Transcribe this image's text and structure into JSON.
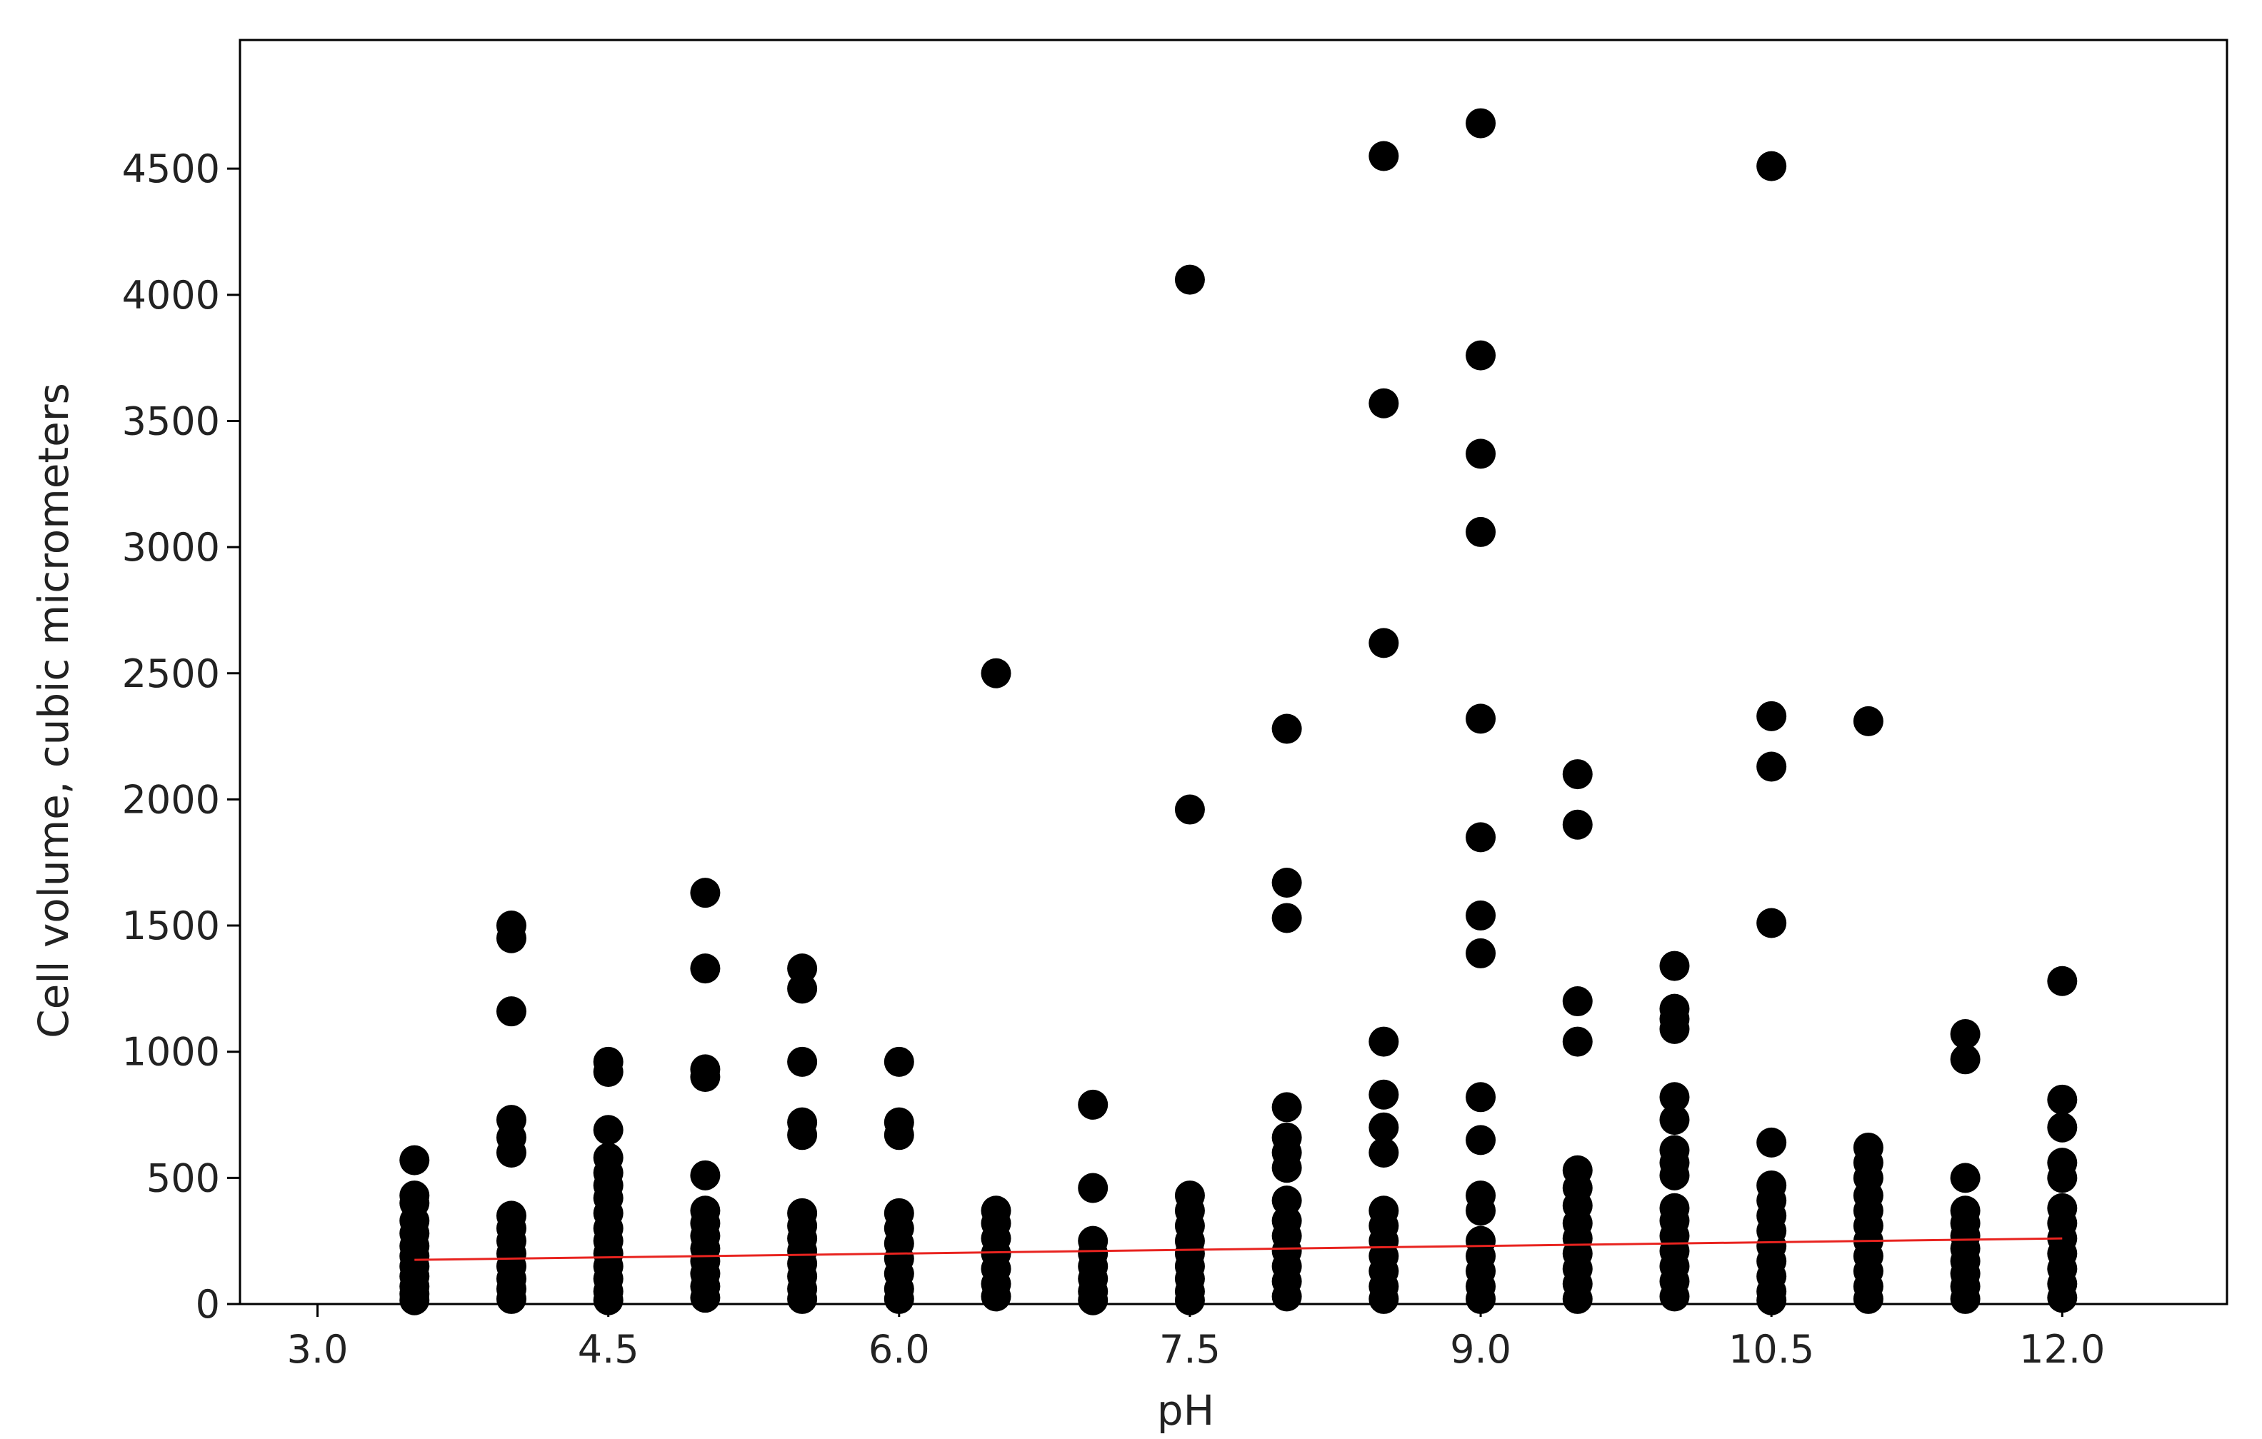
{
  "chart_data": {
    "type": "scatter",
    "title": "",
    "xlabel": "pH",
    "ylabel": "Cell volume, cubic micrometers",
    "xlim": [
      2.6,
      12.85
    ],
    "ylim": [
      0,
      5010
    ],
    "x_ticks": [
      3.0,
      4.5,
      6.0,
      7.5,
      9.0,
      10.5,
      12.0
    ],
    "x_tick_labels": [
      "3.0",
      "4.5",
      "6.0",
      "7.5",
      "9.0",
      "10.5",
      "12.0"
    ],
    "y_ticks": [
      0,
      500,
      1000,
      1500,
      2000,
      2500,
      3000,
      3500,
      4000,
      4500
    ],
    "y_tick_labels": [
      "0",
      "500",
      "1000",
      "1500",
      "2000",
      "2500",
      "3000",
      "3500",
      "4000",
      "4500"
    ],
    "grid": false,
    "legend": "none",
    "colors": {
      "points": "#000000",
      "trend_line": "#e8231f",
      "frame": "#000000"
    },
    "series": [
      {
        "values": [
          [
            3.5,
            570
          ],
          [
            3.5,
            430
          ],
          [
            3.5,
            400
          ],
          [
            3.5,
            330
          ],
          [
            3.5,
            280
          ],
          [
            3.5,
            230
          ],
          [
            3.5,
            190
          ],
          [
            3.5,
            150
          ],
          [
            3.5,
            110
          ],
          [
            3.5,
            70
          ],
          [
            3.5,
            40
          ],
          [
            3.5,
            15
          ],
          [
            4.0,
            1500
          ],
          [
            4.0,
            1450
          ],
          [
            4.0,
            1160
          ],
          [
            4.0,
            730
          ],
          [
            4.0,
            660
          ],
          [
            4.0,
            600
          ],
          [
            4.0,
            350
          ],
          [
            4.0,
            300
          ],
          [
            4.0,
            250
          ],
          [
            4.0,
            200
          ],
          [
            4.0,
            150
          ],
          [
            4.0,
            100
          ],
          [
            4.0,
            60
          ],
          [
            4.0,
            20
          ],
          [
            4.5,
            960
          ],
          [
            4.5,
            920
          ],
          [
            4.5,
            690
          ],
          [
            4.5,
            580
          ],
          [
            4.5,
            520
          ],
          [
            4.5,
            470
          ],
          [
            4.5,
            420
          ],
          [
            4.5,
            360
          ],
          [
            4.5,
            300
          ],
          [
            4.5,
            250
          ],
          [
            4.5,
            200
          ],
          [
            4.5,
            150
          ],
          [
            4.5,
            100
          ],
          [
            4.5,
            50
          ],
          [
            4.5,
            15
          ],
          [
            5.0,
            1630
          ],
          [
            5.0,
            1330
          ],
          [
            5.0,
            930
          ],
          [
            5.0,
            900
          ],
          [
            5.0,
            510
          ],
          [
            5.0,
            370
          ],
          [
            5.0,
            320
          ],
          [
            5.0,
            270
          ],
          [
            5.0,
            220
          ],
          [
            5.0,
            170
          ],
          [
            5.0,
            120
          ],
          [
            5.0,
            70
          ],
          [
            5.0,
            25
          ],
          [
            5.5,
            1330
          ],
          [
            5.5,
            1250
          ],
          [
            5.5,
            960
          ],
          [
            5.5,
            720
          ],
          [
            5.5,
            670
          ],
          [
            5.5,
            360
          ],
          [
            5.5,
            310
          ],
          [
            5.5,
            260
          ],
          [
            5.5,
            210
          ],
          [
            5.5,
            160
          ],
          [
            5.5,
            110
          ],
          [
            5.5,
            60
          ],
          [
            5.5,
            20
          ],
          [
            6.0,
            960
          ],
          [
            6.0,
            720
          ],
          [
            6.0,
            670
          ],
          [
            6.0,
            360
          ],
          [
            6.0,
            300
          ],
          [
            6.0,
            240
          ],
          [
            6.0,
            180
          ],
          [
            6.0,
            120
          ],
          [
            6.0,
            60
          ],
          [
            6.0,
            20
          ],
          [
            6.5,
            2500
          ],
          [
            6.5,
            370
          ],
          [
            6.5,
            320
          ],
          [
            6.5,
            260
          ],
          [
            6.5,
            200
          ],
          [
            6.5,
            140
          ],
          [
            6.5,
            80
          ],
          [
            6.5,
            30
          ],
          [
            7.0,
            790
          ],
          [
            7.0,
            460
          ],
          [
            7.0,
            250
          ],
          [
            7.0,
            200
          ],
          [
            7.0,
            150
          ],
          [
            7.0,
            100
          ],
          [
            7.0,
            50
          ],
          [
            7.0,
            15
          ],
          [
            7.5,
            4060
          ],
          [
            7.5,
            1960
          ],
          [
            7.5,
            430
          ],
          [
            7.5,
            370
          ],
          [
            7.5,
            310
          ],
          [
            7.5,
            250
          ],
          [
            7.5,
            200
          ],
          [
            7.5,
            150
          ],
          [
            7.5,
            100
          ],
          [
            7.5,
            50
          ],
          [
            7.5,
            15
          ],
          [
            8.0,
            2280
          ],
          [
            8.0,
            1670
          ],
          [
            8.0,
            1530
          ],
          [
            8.0,
            780
          ],
          [
            8.0,
            660
          ],
          [
            8.0,
            600
          ],
          [
            8.0,
            540
          ],
          [
            8.0,
            410
          ],
          [
            8.0,
            330
          ],
          [
            8.0,
            270
          ],
          [
            8.0,
            210
          ],
          [
            8.0,
            150
          ],
          [
            8.0,
            90
          ],
          [
            8.0,
            30
          ],
          [
            8.5,
            4550
          ],
          [
            8.5,
            3570
          ],
          [
            8.5,
            2620
          ],
          [
            8.5,
            1040
          ],
          [
            8.5,
            830
          ],
          [
            8.5,
            700
          ],
          [
            8.5,
            600
          ],
          [
            8.5,
            370
          ],
          [
            8.5,
            310
          ],
          [
            8.5,
            250
          ],
          [
            8.5,
            190
          ],
          [
            8.5,
            130
          ],
          [
            8.5,
            70
          ],
          [
            8.5,
            20
          ],
          [
            9.0,
            4680
          ],
          [
            9.0,
            3760
          ],
          [
            9.0,
            3370
          ],
          [
            9.0,
            3060
          ],
          [
            9.0,
            2320
          ],
          [
            9.0,
            1850
          ],
          [
            9.0,
            1540
          ],
          [
            9.0,
            1390
          ],
          [
            9.0,
            820
          ],
          [
            9.0,
            650
          ],
          [
            9.0,
            430
          ],
          [
            9.0,
            370
          ],
          [
            9.0,
            250
          ],
          [
            9.0,
            190
          ],
          [
            9.0,
            130
          ],
          [
            9.0,
            70
          ],
          [
            9.0,
            20
          ],
          [
            9.5,
            2100
          ],
          [
            9.5,
            1900
          ],
          [
            9.5,
            1200
          ],
          [
            9.5,
            1040
          ],
          [
            9.5,
            530
          ],
          [
            9.5,
            460
          ],
          [
            9.5,
            390
          ],
          [
            9.5,
            320
          ],
          [
            9.5,
            260
          ],
          [
            9.5,
            200
          ],
          [
            9.5,
            140
          ],
          [
            9.5,
            80
          ],
          [
            9.5,
            20
          ],
          [
            10.0,
            1340
          ],
          [
            10.0,
            1170
          ],
          [
            10.0,
            1130
          ],
          [
            10.0,
            1090
          ],
          [
            10.0,
            820
          ],
          [
            10.0,
            730
          ],
          [
            10.0,
            610
          ],
          [
            10.0,
            560
          ],
          [
            10.0,
            510
          ],
          [
            10.0,
            380
          ],
          [
            10.0,
            330
          ],
          [
            10.0,
            270
          ],
          [
            10.0,
            210
          ],
          [
            10.0,
            150
          ],
          [
            10.0,
            90
          ],
          [
            10.0,
            30
          ],
          [
            10.5,
            4510
          ],
          [
            10.5,
            2330
          ],
          [
            10.5,
            2130
          ],
          [
            10.5,
            1510
          ],
          [
            10.5,
            640
          ],
          [
            10.5,
            470
          ],
          [
            10.5,
            410
          ],
          [
            10.5,
            350
          ],
          [
            10.5,
            290
          ],
          [
            10.5,
            230
          ],
          [
            10.5,
            170
          ],
          [
            10.5,
            110
          ],
          [
            10.5,
            50
          ],
          [
            10.5,
            15
          ],
          [
            11.0,
            2310
          ],
          [
            11.0,
            620
          ],
          [
            11.0,
            560
          ],
          [
            11.0,
            500
          ],
          [
            11.0,
            430
          ],
          [
            11.0,
            370
          ],
          [
            11.0,
            310
          ],
          [
            11.0,
            250
          ],
          [
            11.0,
            190
          ],
          [
            11.0,
            130
          ],
          [
            11.0,
            70
          ],
          [
            11.0,
            20
          ],
          [
            11.5,
            1070
          ],
          [
            11.5,
            970
          ],
          [
            11.5,
            500
          ],
          [
            11.5,
            370
          ],
          [
            11.5,
            320
          ],
          [
            11.5,
            270
          ],
          [
            11.5,
            220
          ],
          [
            11.5,
            170
          ],
          [
            11.5,
            120
          ],
          [
            11.5,
            70
          ],
          [
            11.5,
            20
          ],
          [
            12.0,
            1280
          ],
          [
            12.0,
            810
          ],
          [
            12.0,
            700
          ],
          [
            12.0,
            560
          ],
          [
            12.0,
            500
          ],
          [
            12.0,
            380
          ],
          [
            12.0,
            320
          ],
          [
            12.0,
            260
          ],
          [
            12.0,
            200
          ],
          [
            12.0,
            140
          ],
          [
            12.0,
            80
          ],
          [
            12.0,
            25
          ]
        ]
      }
    ],
    "trend_line": {
      "x": [
        3.5,
        12.0
      ],
      "y": [
        175,
        260
      ]
    }
  }
}
